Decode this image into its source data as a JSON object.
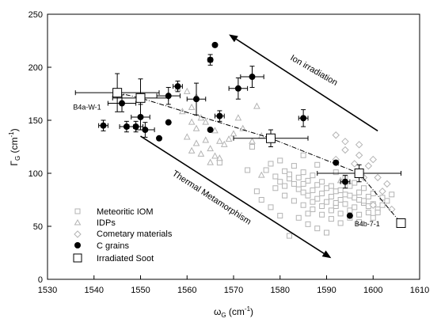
{
  "chart_data": {
    "type": "scatter",
    "xlabel_symbol": "ω",
    "xlabel_sub": "G",
    "xlabel_unit": " (cm",
    "xlabel_exp": "-1",
    "xlabel_close": ")",
    "ylabel_symbol": "Γ",
    "ylabel_sub": "G",
    "ylabel_unit": " (cm",
    "ylabel_exp": "-1",
    "ylabel_close": ")",
    "xlim": [
      1530,
      1610
    ],
    "ylim": [
      0,
      250
    ],
    "xticks": [
      1530,
      1540,
      1550,
      1560,
      1570,
      1580,
      1590,
      1600,
      1610
    ],
    "yticks": [
      0,
      50,
      100,
      150,
      200,
      250
    ],
    "grid": false,
    "legend_position": "bottom-left",
    "series": [
      {
        "name": "Meteoritic IOM",
        "marker": "open-square",
        "color": "#b3b3b3",
        "points": [
          [
            1577,
            103
          ],
          [
            1579,
            97
          ],
          [
            1580,
            92
          ],
          [
            1581,
            88
          ],
          [
            1582,
            95
          ],
          [
            1583,
            90
          ],
          [
            1584,
            85
          ],
          [
            1585,
            82
          ],
          [
            1586,
            79
          ],
          [
            1587,
            84
          ],
          [
            1588,
            76
          ],
          [
            1589,
            81
          ],
          [
            1590,
            73
          ],
          [
            1591,
            78
          ],
          [
            1592,
            69
          ],
          [
            1593,
            75
          ],
          [
            1594,
            71
          ],
          [
            1595,
            65
          ],
          [
            1596,
            68
          ],
          [
            1597,
            61
          ],
          [
            1598,
            72
          ],
          [
            1599,
            63
          ],
          [
            1600,
            58
          ],
          [
            1601,
            66
          ],
          [
            1602,
            70
          ],
          [
            1603,
            74
          ],
          [
            1604,
            80
          ],
          [
            1578,
            109
          ],
          [
            1580,
            112
          ],
          [
            1582,
            99
          ],
          [
            1584,
            96
          ],
          [
            1586,
            93
          ],
          [
            1588,
            89
          ],
          [
            1590,
            86
          ],
          [
            1592,
            83
          ],
          [
            1594,
            80
          ],
          [
            1596,
            77
          ],
          [
            1598,
            74
          ],
          [
            1600,
            71
          ],
          [
            1581,
            102
          ],
          [
            1583,
            107
          ],
          [
            1585,
            101
          ],
          [
            1587,
            98
          ],
          [
            1589,
            92
          ],
          [
            1591,
            88
          ],
          [
            1593,
            84
          ],
          [
            1595,
            79
          ],
          [
            1597,
            75
          ],
          [
            1599,
            69
          ],
          [
            1601,
            63
          ],
          [
            1579,
            86
          ],
          [
            1581,
            79
          ],
          [
            1583,
            74
          ],
          [
            1585,
            70
          ],
          [
            1587,
            66
          ],
          [
            1589,
            61
          ],
          [
            1591,
            57
          ],
          [
            1593,
            53
          ],
          [
            1595,
            58
          ],
          [
            1597,
            54
          ],
          [
            1584,
            58
          ],
          [
            1586,
            52
          ],
          [
            1588,
            48
          ],
          [
            1582,
            41
          ],
          [
            1590,
            44
          ],
          [
            1580,
            60
          ],
          [
            1578,
            68
          ],
          [
            1576,
            75
          ],
          [
            1575,
            83
          ],
          [
            1573,
            103
          ],
          [
            1567,
            110
          ],
          [
            1574,
            125
          ],
          [
            1585,
            117
          ],
          [
            1588,
            108
          ],
          [
            1592,
            101
          ],
          [
            1594,
            96
          ],
          [
            1596,
            91
          ],
          [
            1598,
            86
          ],
          [
            1600,
            81
          ],
          [
            1602,
            77
          ],
          [
            1585,
            90
          ],
          [
            1587,
            73
          ],
          [
            1589,
            69
          ],
          [
            1591,
            65
          ],
          [
            1593,
            62
          ],
          [
            1595,
            88
          ],
          [
            1597,
            82
          ],
          [
            1599,
            78
          ],
          [
            1586,
            62
          ],
          [
            1592,
            72
          ]
        ]
      },
      {
        "name": "IDPs",
        "marker": "open-triangle",
        "color": "#b3b3b3",
        "points": [
          [
            1558,
            180
          ],
          [
            1560,
            177
          ],
          [
            1562,
            172
          ],
          [
            1559,
            158
          ],
          [
            1561,
            162
          ],
          [
            1563,
            152
          ],
          [
            1561,
            148
          ],
          [
            1562,
            142
          ],
          [
            1564,
            148
          ],
          [
            1566,
            140
          ],
          [
            1567,
            130
          ],
          [
            1564,
            131
          ],
          [
            1562,
            128
          ],
          [
            1561,
            121
          ],
          [
            1563,
            118
          ],
          [
            1565,
            123
          ],
          [
            1566,
            116
          ],
          [
            1568,
            127
          ],
          [
            1569,
            132
          ],
          [
            1570,
            137
          ],
          [
            1575,
            163
          ],
          [
            1574,
            130
          ],
          [
            1576,
            135
          ],
          [
            1572,
            142
          ],
          [
            1560,
            134
          ],
          [
            1571,
            152
          ],
          [
            1565,
            110
          ],
          [
            1567,
            114
          ],
          [
            1576,
            98
          ],
          [
            1593,
            93
          ]
        ]
      },
      {
        "name": "Cometary materials",
        "marker": "open-diamond",
        "color": "#b3b3b3",
        "points": [
          [
            1592,
            136
          ],
          [
            1594,
            130
          ],
          [
            1594,
            122
          ],
          [
            1597,
            127
          ],
          [
            1597,
            117
          ],
          [
            1599,
            107
          ],
          [
            1600,
            113
          ],
          [
            1601,
            96
          ],
          [
            1602,
            83
          ],
          [
            1592,
            113
          ],
          [
            1603,
            90
          ],
          [
            1600,
            70
          ],
          [
            1604,
            66
          ],
          [
            1598,
            96
          ],
          [
            1596,
            109
          ]
        ]
      },
      {
        "name": "C grains",
        "marker": "filled-circle",
        "color": "#000000",
        "points": [
          {
            "x": 1542,
            "y": 145,
            "xerr": 1,
            "yerr": 5
          },
          {
            "x": 1546,
            "y": 166,
            "xerr": 3,
            "yerr": 8
          },
          {
            "x": 1547,
            "y": 144,
            "xerr": 1.5,
            "yerr": 5
          },
          {
            "x": 1549,
            "y": 144,
            "xerr": 1.5,
            "yerr": 5
          },
          {
            "x": 1550,
            "y": 153,
            "xerr": 2,
            "yerr": 12
          },
          {
            "x": 1551,
            "y": 141,
            "xerr": 2,
            "yerr": 7
          },
          {
            "x": 1554,
            "y": 133,
            "xerr": 0,
            "yerr": 0
          },
          {
            "x": 1556,
            "y": 148,
            "xerr": 0,
            "yerr": 0
          },
          {
            "x": 1556,
            "y": 173,
            "xerr": 2.5,
            "yerr": 8
          },
          {
            "x": 1558,
            "y": 182,
            "xerr": 1,
            "yerr": 5
          },
          {
            "x": 1562,
            "y": 170,
            "xerr": 2,
            "yerr": 15
          },
          {
            "x": 1565,
            "y": 141,
            "xerr": 0,
            "yerr": 0
          },
          {
            "x": 1565,
            "y": 207,
            "xerr": 0.5,
            "yerr": 5
          },
          {
            "x": 1566,
            "y": 221,
            "xerr": 0,
            "yerr": 0
          },
          {
            "x": 1567,
            "y": 154,
            "xerr": 1,
            "yerr": 5
          },
          {
            "x": 1571,
            "y": 180,
            "xerr": 2,
            "yerr": 10
          },
          {
            "x": 1574,
            "y": 191,
            "xerr": 2.5,
            "yerr": 10
          },
          {
            "x": 1585,
            "y": 152,
            "xerr": 1,
            "yerr": 8
          },
          {
            "x": 1592,
            "y": 110,
            "xerr": 0,
            "yerr": 0
          },
          {
            "x": 1594,
            "y": 92,
            "xerr": 1,
            "yerr": 6
          },
          {
            "x": 1595,
            "y": 60,
            "xerr": 0,
            "yerr": 0
          }
        ]
      },
      {
        "name": "Irradiated Soot",
        "marker": "open-square-large",
        "color": "#000000",
        "line": "dash-dot",
        "points": [
          {
            "x": 1545,
            "y": 176,
            "xerr": 9,
            "yerr": 18
          },
          {
            "x": 1550,
            "y": 171,
            "xerr": 6,
            "yerr": 18
          },
          {
            "x": 1578,
            "y": 133,
            "xerr": 8,
            "yerr": 8
          },
          {
            "x": 1597,
            "y": 100,
            "xerr": 9,
            "yerr": 8
          },
          {
            "x": 1606,
            "y": 53,
            "xerr": 0,
            "yerr": 0
          }
        ]
      }
    ],
    "annotations": [
      {
        "key": "b4a",
        "text": "B4a-W-1",
        "x": 1535.5,
        "y": 160
      },
      {
        "key": "b4b",
        "text": "B4b-7-1",
        "x": 1596,
        "y": 50
      }
    ],
    "arrows": [
      {
        "label": "Ion irradiation",
        "from": [
          1601,
          140
        ],
        "to": [
          1569,
          231
        ],
        "label_pos": [
          1587,
          195
        ],
        "label_rotation": 30
      },
      {
        "label": "Thermal Metamorphism",
        "from": [
          1550,
          135
        ],
        "to": [
          1591,
          20
        ],
        "label_pos": [
          1565,
          75
        ],
        "label_rotation": 33
      }
    ]
  }
}
